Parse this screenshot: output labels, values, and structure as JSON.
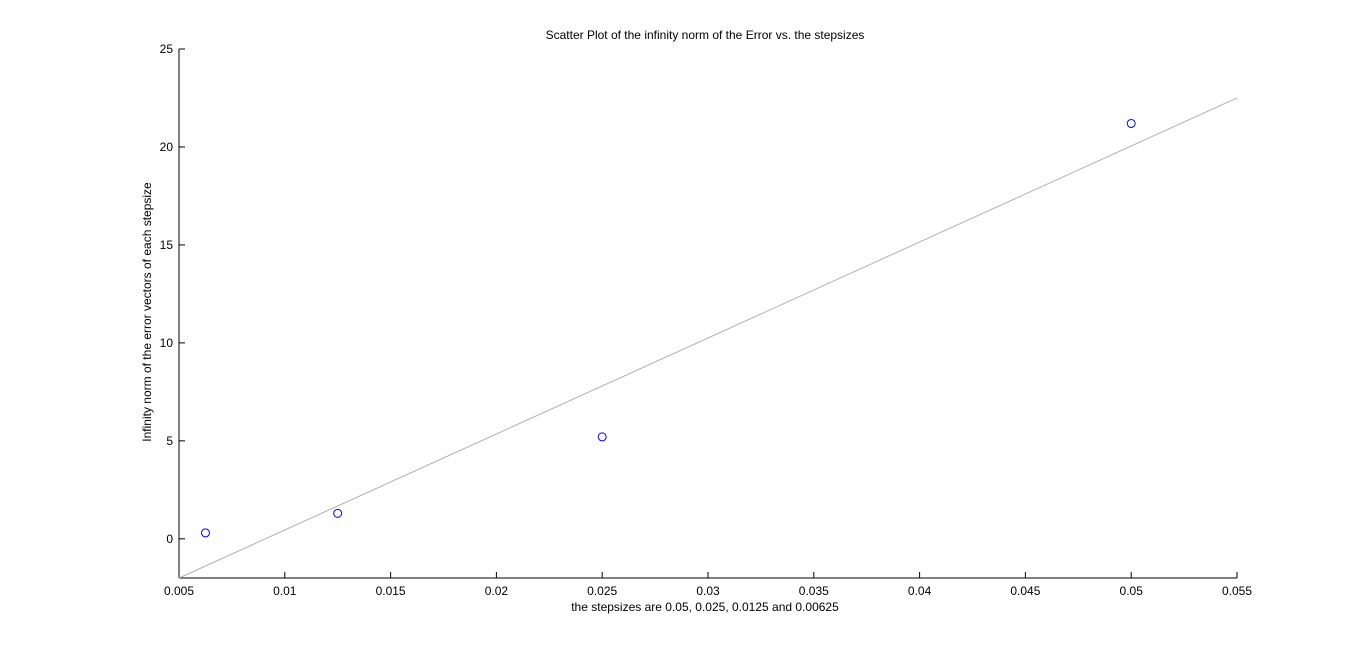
{
  "chart_data": {
    "type": "scatter",
    "title": "Scatter Plot of the infinity norm of the Error vs. the stepsizes",
    "xlabel": "the stepsizes are 0.05, 0.025, 0.0125 and 0.00625",
    "ylabel": "Infinity norm of the error vectors of each stepsize",
    "xlim": [
      0.005,
      0.055
    ],
    "ylim": [
      -2,
      25
    ],
    "xticks": [
      "0.005",
      "0.01",
      "0.015",
      "0.02",
      "0.025",
      "0.03",
      "0.035",
      "0.04",
      "0.045",
      "0.05",
      "0.055"
    ],
    "yticks": [
      "0",
      "5",
      "10",
      "15",
      "20",
      "25"
    ],
    "grid": false,
    "series": [
      {
        "marker": "circle",
        "color": "#0000ff",
        "x": [
          0.00625,
          0.0125,
          0.025,
          0.05
        ],
        "y": [
          0.3,
          1.3,
          5.2,
          21.2
        ]
      }
    ],
    "fit_line": {
      "color": "#b0b0b0",
      "x": [
        0.005,
        0.055
      ],
      "y": [
        -2.0,
        22.5
      ]
    }
  }
}
